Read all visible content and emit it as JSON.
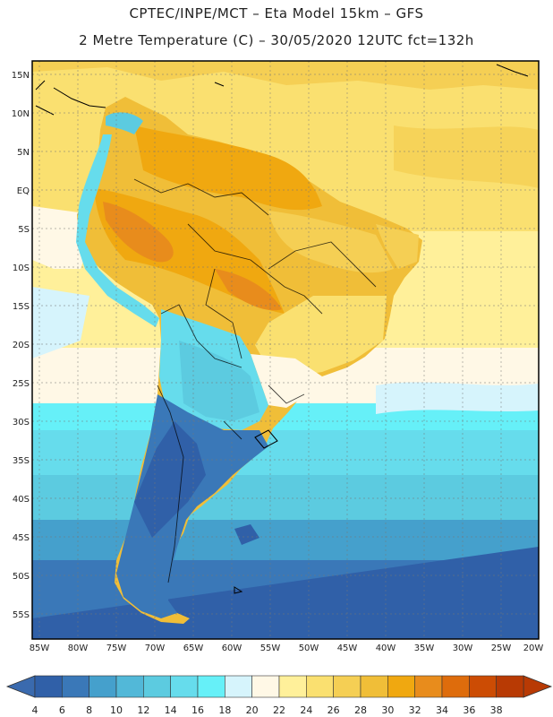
{
  "header": {
    "line1": "CPTEC/INPE/MCT –  Eta Model 15km – GFS",
    "line2": "2 Metre Temperature (C) – 30/05/2020 12UTC fct=132h"
  },
  "axes": {
    "lat_labels": [
      "15N",
      "10N",
      "5N",
      "EQ",
      "5S",
      "10S",
      "15S",
      "20S",
      "25S",
      "30S",
      "35S",
      "40S",
      "45S",
      "50S",
      "55S"
    ],
    "lon_labels": [
      "85W",
      "80W",
      "75W",
      "70W",
      "65W",
      "60W",
      "55W",
      "50W",
      "45W",
      "40W",
      "35W",
      "30W",
      "25W",
      "20W"
    ]
  },
  "colorbar": {
    "ticks": [
      "4",
      "6",
      "8",
      "10",
      "12",
      "14",
      "16",
      "18",
      "20",
      "22",
      "24",
      "26",
      "28",
      "30",
      "32",
      "34",
      "36",
      "38"
    ],
    "colors": [
      "#3060a8",
      "#3a78b8",
      "#45a0cc",
      "#52b8d8",
      "#5ccbe0",
      "#66dcec",
      "#66f0f8",
      "#d6f4fc",
      "#fff8e6",
      "#fff09a",
      "#fae070",
      "#f5cf54",
      "#f0be38",
      "#f0a810",
      "#e88c1c",
      "#de6c0c",
      "#cc4c04",
      "#b83a04"
    ],
    "under_color": "#3a6aae",
    "over_color": "#b83a04"
  }
}
